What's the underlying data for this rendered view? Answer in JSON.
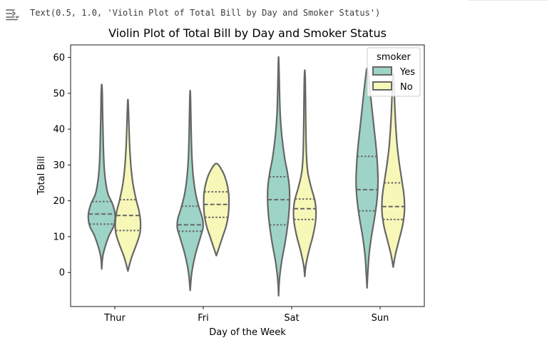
{
  "cell_output": {
    "icon": "output-collapse-icon",
    "text": "Text(0.5, 1.0, 'Violin Plot of Total Bill by Day and Smoker Status')"
  },
  "chart_data": {
    "type": "violin",
    "title": "Violin Plot of Total Bill by Day and Smoker Status",
    "xlabel": "Day of the Week",
    "ylabel": "Total Bill",
    "categories": [
      "Thur",
      "Fri",
      "Sat",
      "Sun"
    ],
    "ylim": [
      -9.5,
      63.5
    ],
    "yticks": [
      0,
      10,
      20,
      30,
      40,
      50,
      60
    ],
    "grid": false,
    "legend": {
      "title": "smoker",
      "position": "top-right"
    },
    "inner": "quartile",
    "series": [
      {
        "name": "Yes",
        "color": "#9ed4c7",
        "violins": [
          {
            "category": "Thur",
            "min": 1,
            "max": 52.5,
            "q1": 13.5,
            "median": 16.3,
            "q3": 19.8,
            "profile": [
              [
                1,
                0
              ],
              [
                5,
                0.1
              ],
              [
                10,
                0.5
              ],
              [
                13,
                0.88
              ],
              [
                16,
                0.98
              ],
              [
                19,
                0.8
              ],
              [
                22,
                0.45
              ],
              [
                26,
                0.26
              ],
              [
                30,
                0.17
              ],
              [
                35,
                0.12
              ],
              [
                40,
                0.09
              ],
              [
                45,
                0.06
              ],
              [
                50,
                0.04
              ],
              [
                52.5,
                0
              ]
            ]
          },
          {
            "category": "Fri",
            "min": -5,
            "max": 50.8,
            "q1": 11.5,
            "median": 13.3,
            "q3": 18.5,
            "profile": [
              [
                -5,
                0
              ],
              [
                0,
                0.12
              ],
              [
                5,
                0.38
              ],
              [
                10,
                0.76
              ],
              [
                12.5,
                0.94
              ],
              [
                15,
                0.9
              ],
              [
                18,
                0.66
              ],
              [
                22,
                0.4
              ],
              [
                27,
                0.22
              ],
              [
                32,
                0.13
              ],
              [
                38,
                0.08
              ],
              [
                44,
                0.05
              ],
              [
                48,
                0.03
              ],
              [
                50.8,
                0
              ]
            ]
          },
          {
            "category": "Sat",
            "min": -6.5,
            "max": 60.2,
            "q1": 13.3,
            "median": 20.3,
            "q3": 26.7,
            "profile": [
              [
                -6.5,
                0
              ],
              [
                -2,
                0.06
              ],
              [
                3,
                0.22
              ],
              [
                8,
                0.46
              ],
              [
                12,
                0.62
              ],
              [
                16,
                0.74
              ],
              [
                20,
                0.8
              ],
              [
                24,
                0.78
              ],
              [
                28,
                0.64
              ],
              [
                32,
                0.44
              ],
              [
                38,
                0.24
              ],
              [
                44,
                0.12
              ],
              [
                50,
                0.07
              ],
              [
                55,
                0.04
              ],
              [
                60.2,
                0
              ]
            ]
          },
          {
            "category": "Sun",
            "min": -4.3,
            "max": 57,
            "q1": 17.2,
            "median": 23.1,
            "q3": 32.4,
            "profile": [
              [
                -4.3,
                0
              ],
              [
                0,
                0.06
              ],
              [
                5,
                0.15
              ],
              [
                10,
                0.32
              ],
              [
                15,
                0.54
              ],
              [
                20,
                0.72
              ],
              [
                25,
                0.8
              ],
              [
                30,
                0.76
              ],
              [
                35,
                0.66
              ],
              [
                40,
                0.52
              ],
              [
                45,
                0.38
              ],
              [
                50,
                0.24
              ],
              [
                54,
                0.12
              ],
              [
                57,
                0
              ]
            ]
          }
        ]
      },
      {
        "name": "No",
        "color": "#f7f7b8",
        "violins": [
          {
            "category": "Thur",
            "min": 0.4,
            "max": 48.3,
            "q1": 11.7,
            "median": 15.9,
            "q3": 20.3,
            "profile": [
              [
                0.4,
                0
              ],
              [
                4,
                0.25
              ],
              [
                8,
                0.64
              ],
              [
                11,
                0.88
              ],
              [
                14,
                0.92
              ],
              [
                17,
                0.82
              ],
              [
                20,
                0.62
              ],
              [
                24,
                0.4
              ],
              [
                28,
                0.26
              ],
              [
                33,
                0.16
              ],
              [
                38,
                0.1
              ],
              [
                43,
                0.06
              ],
              [
                48.3,
                0
              ]
            ]
          },
          {
            "category": "Fri",
            "min": 4.7,
            "max": 30.4,
            "q1": 15.4,
            "median": 19,
            "q3": 22.5,
            "profile": [
              [
                4.7,
                0
              ],
              [
                7,
                0.2
              ],
              [
                10,
                0.46
              ],
              [
                13,
                0.72
              ],
              [
                16,
                0.87
              ],
              [
                19,
                0.92
              ],
              [
                22,
                0.9
              ],
              [
                25,
                0.76
              ],
              [
                28,
                0.48
              ],
              [
                30.4,
                0
              ]
            ]
          },
          {
            "category": "Sat",
            "min": -1.1,
            "max": 56.5,
            "q1": 14.8,
            "median": 17.8,
            "q3": 20.5,
            "profile": [
              [
                -1.1,
                0
              ],
              [
                2,
                0.08
              ],
              [
                6,
                0.3
              ],
              [
                10,
                0.58
              ],
              [
                14,
                0.78
              ],
              [
                17,
                0.82
              ],
              [
                20,
                0.74
              ],
              [
                24,
                0.45
              ],
              [
                28,
                0.22
              ],
              [
                33,
                0.12
              ],
              [
                40,
                0.08
              ],
              [
                47,
                0.06
              ],
              [
                53,
                0.04
              ],
              [
                56.5,
                0
              ]
            ]
          },
          {
            "category": "Sun",
            "min": 1.5,
            "max": 55.4,
            "q1": 14.8,
            "median": 18.4,
            "q3": 25,
            "profile": [
              [
                1.5,
                0
              ],
              [
                5,
                0.16
              ],
              [
                9,
                0.42
              ],
              [
                13,
                0.68
              ],
              [
                17,
                0.82
              ],
              [
                21,
                0.8
              ],
              [
                25,
                0.66
              ],
              [
                30,
                0.46
              ],
              [
                35,
                0.3
              ],
              [
                40,
                0.2
              ],
              [
                45,
                0.13
              ],
              [
                50,
                0.08
              ],
              [
                55.4,
                0
              ]
            ]
          }
        ]
      }
    ]
  }
}
